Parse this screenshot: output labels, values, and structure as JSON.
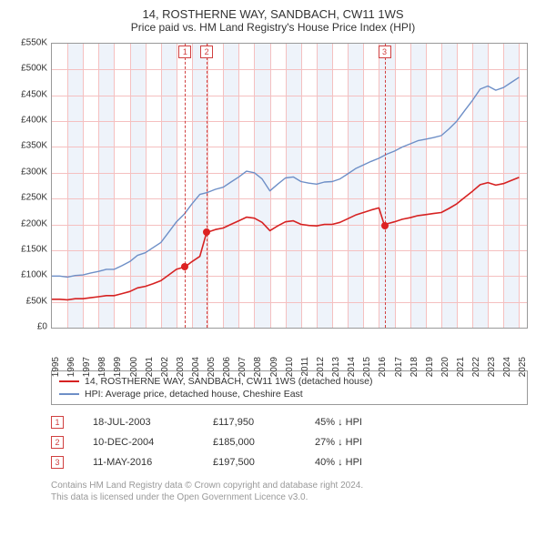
{
  "title": "14, ROSTHERNE WAY, SANDBACH, CW11 1WS",
  "subtitle": "Price paid vs. HM Land Registry's House Price Index (HPI)",
  "chart": {
    "type": "line",
    "background_color": "#ffffff",
    "grid_color": "#f5c0c0",
    "font_family": "Arial",
    "x": {
      "min": 1995,
      "max": 2025.5,
      "ticks": [
        1995,
        1996,
        1997,
        1998,
        1999,
        2000,
        2001,
        2002,
        2003,
        2004,
        2005,
        2006,
        2007,
        2008,
        2009,
        2010,
        2011,
        2012,
        2013,
        2014,
        2015,
        2016,
        2017,
        2018,
        2019,
        2020,
        2021,
        2022,
        2023,
        2024,
        2025
      ],
      "label_fontsize": 10
    },
    "y": {
      "min": 0,
      "max": 550000,
      "ticks": [
        0,
        50000,
        100000,
        150000,
        200000,
        250000,
        300000,
        350000,
        400000,
        450000,
        500000,
        550000
      ],
      "tick_labels": [
        "£0",
        "£50K",
        "£100K",
        "£150K",
        "£200K",
        "£250K",
        "£300K",
        "£350K",
        "£400K",
        "£450K",
        "£500K",
        "£550K"
      ],
      "label_fontsize": 10
    },
    "alt_bands_every_other_year": true,
    "band_color": "#eef3fa",
    "series": [
      {
        "key": "hpi",
        "color": "#6e8fc7",
        "line_width": 1.4,
        "data": [
          [
            1995.0,
            100000
          ],
          [
            1995.5,
            100000
          ],
          [
            1996.0,
            98000
          ],
          [
            1996.5,
            101000
          ],
          [
            1997.0,
            102000
          ],
          [
            1997.5,
            106000
          ],
          [
            1998.0,
            109000
          ],
          [
            1998.5,
            113000
          ],
          [
            1999.0,
            113000
          ],
          [
            1999.5,
            120000
          ],
          [
            2000.0,
            128000
          ],
          [
            2000.5,
            140000
          ],
          [
            2001.0,
            145000
          ],
          [
            2001.5,
            155000
          ],
          [
            2002.0,
            165000
          ],
          [
            2002.5,
            185000
          ],
          [
            2003.0,
            205000
          ],
          [
            2003.5,
            220000
          ],
          [
            2004.0,
            240000
          ],
          [
            2004.5,
            258000
          ],
          [
            2005.0,
            262000
          ],
          [
            2005.5,
            268000
          ],
          [
            2006.0,
            272000
          ],
          [
            2006.5,
            282000
          ],
          [
            2007.0,
            292000
          ],
          [
            2007.5,
            303000
          ],
          [
            2008.0,
            300000
          ],
          [
            2008.5,
            288000
          ],
          [
            2009.0,
            265000
          ],
          [
            2009.5,
            278000
          ],
          [
            2010.0,
            290000
          ],
          [
            2010.5,
            292000
          ],
          [
            2011.0,
            283000
          ],
          [
            2011.5,
            280000
          ],
          [
            2012.0,
            278000
          ],
          [
            2012.5,
            282000
          ],
          [
            2013.0,
            283000
          ],
          [
            2013.5,
            288000
          ],
          [
            2014.0,
            298000
          ],
          [
            2014.5,
            308000
          ],
          [
            2015.0,
            315000
          ],
          [
            2015.5,
            322000
          ],
          [
            2016.0,
            328000
          ],
          [
            2016.5,
            336000
          ],
          [
            2017.0,
            342000
          ],
          [
            2017.5,
            350000
          ],
          [
            2018.0,
            356000
          ],
          [
            2018.5,
            362000
          ],
          [
            2019.0,
            365000
          ],
          [
            2019.5,
            368000
          ],
          [
            2020.0,
            372000
          ],
          [
            2020.5,
            385000
          ],
          [
            2021.0,
            400000
          ],
          [
            2021.5,
            420000
          ],
          [
            2022.0,
            440000
          ],
          [
            2022.5,
            462000
          ],
          [
            2023.0,
            468000
          ],
          [
            2023.5,
            460000
          ],
          [
            2024.0,
            465000
          ],
          [
            2024.5,
            475000
          ],
          [
            2025.0,
            485000
          ]
        ]
      },
      {
        "key": "property",
        "color": "#d62222",
        "line_width": 1.6,
        "data": [
          [
            1995.0,
            55000
          ],
          [
            1995.5,
            55000
          ],
          [
            1996.0,
            54000
          ],
          [
            1996.5,
            56000
          ],
          [
            1997.0,
            56000
          ],
          [
            1997.5,
            58000
          ],
          [
            1998.0,
            60000
          ],
          [
            1998.5,
            62000
          ],
          [
            1999.0,
            62000
          ],
          [
            1999.5,
            66000
          ],
          [
            2000.0,
            70000
          ],
          [
            2000.5,
            77000
          ],
          [
            2001.0,
            80000
          ],
          [
            2001.5,
            85000
          ],
          [
            2002.0,
            91000
          ],
          [
            2002.5,
            102000
          ],
          [
            2003.0,
            113000
          ],
          [
            2003.55,
            117950
          ],
          [
            2003.56,
            117950
          ],
          [
            2004.0,
            128000
          ],
          [
            2004.5,
            138000
          ],
          [
            2004.94,
            185000
          ],
          [
            2005.0,
            185000
          ],
          [
            2005.5,
            190000
          ],
          [
            2006.0,
            193000
          ],
          [
            2006.5,
            200000
          ],
          [
            2007.0,
            207000
          ],
          [
            2007.5,
            214000
          ],
          [
            2008.0,
            212000
          ],
          [
            2008.5,
            204000
          ],
          [
            2009.0,
            188000
          ],
          [
            2009.5,
            197000
          ],
          [
            2010.0,
            205000
          ],
          [
            2010.5,
            207000
          ],
          [
            2011.0,
            200000
          ],
          [
            2011.5,
            198000
          ],
          [
            2012.0,
            197000
          ],
          [
            2012.5,
            200000
          ],
          [
            2013.0,
            200000
          ],
          [
            2013.5,
            204000
          ],
          [
            2014.0,
            211000
          ],
          [
            2014.5,
            218000
          ],
          [
            2015.0,
            223000
          ],
          [
            2015.5,
            228000
          ],
          [
            2016.0,
            232000
          ],
          [
            2016.36,
            197500
          ],
          [
            2016.37,
            197500
          ],
          [
            2016.5,
            201000
          ],
          [
            2017.0,
            205000
          ],
          [
            2017.5,
            210000
          ],
          [
            2018.0,
            213000
          ],
          [
            2018.5,
            217000
          ],
          [
            2019.0,
            219000
          ],
          [
            2019.5,
            221000
          ],
          [
            2020.0,
            223000
          ],
          [
            2020.5,
            231000
          ],
          [
            2021.0,
            240000
          ],
          [
            2021.5,
            252000
          ],
          [
            2022.0,
            264000
          ],
          [
            2022.5,
            277000
          ],
          [
            2023.0,
            281000
          ],
          [
            2023.5,
            276000
          ],
          [
            2024.0,
            279000
          ],
          [
            2024.5,
            285000
          ],
          [
            2025.0,
            291000
          ]
        ]
      }
    ],
    "sale_markers": [
      {
        "n": "1",
        "year_frac": 2003.55,
        "price": 117950
      },
      {
        "n": "2",
        "year_frac": 2004.94,
        "price": 185000
      },
      {
        "n": "3",
        "year_frac": 2016.36,
        "price": 197500
      }
    ],
    "marker_box_border": "#d04040",
    "marker_box_text": "#d04040"
  },
  "legend": {
    "items": [
      {
        "color": "#d62222",
        "label": "14, ROSTHERNE WAY, SANDBACH, CW11 1WS (detached house)"
      },
      {
        "color": "#6e8fc7",
        "label": "HPI: Average price, detached house, Cheshire East"
      }
    ]
  },
  "sales": [
    {
      "n": "1",
      "date": "18-JUL-2003",
      "price": "£117,950",
      "diff": "45% ↓ HPI"
    },
    {
      "n": "2",
      "date": "10-DEC-2004",
      "price": "£185,000",
      "diff": "27% ↓ HPI"
    },
    {
      "n": "3",
      "date": "11-MAY-2016",
      "price": "£197,500",
      "diff": "40% ↓ HPI"
    }
  ],
  "footer": {
    "l1": "Contains HM Land Registry data © Crown copyright and database right 2024.",
    "l2": "This data is licensed under the Open Government Licence v3.0."
  }
}
